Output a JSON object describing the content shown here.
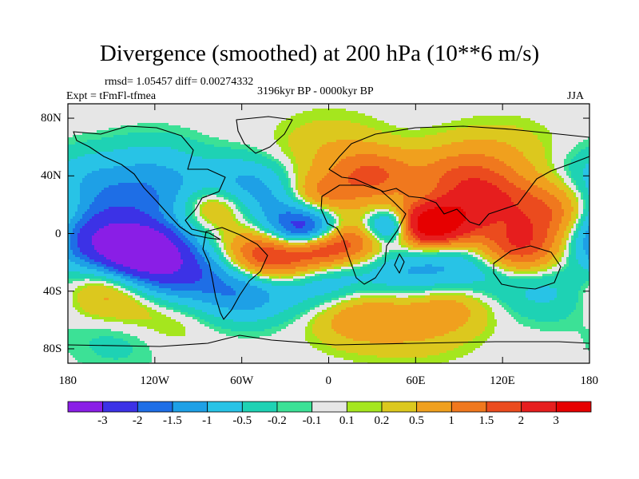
{
  "chart_data": {
    "type": "heatmap",
    "title": "Divergence (smoothed) at 200 hPa (10**6 m/s)",
    "stats_line": "rmsd= 1.05457 diff= 0.00274332",
    "experiment_label": "Expt = tFmFl-tfmea",
    "period_label": "3196kyr BP - 0000kyr BP",
    "season_label": "JJA",
    "x_axis": {
      "range": [
        -180,
        180
      ],
      "ticks": [
        -180,
        -120,
        -60,
        0,
        60,
        120,
        180
      ],
      "tick_labels": [
        "180",
        "120W",
        "60W",
        "0",
        "60E",
        "120E",
        "180"
      ]
    },
    "y_axis": {
      "range": [
        -90,
        90
      ],
      "ticks": [
        80,
        40,
        0,
        -40,
        -80
      ],
      "tick_labels": [
        "80N",
        "40N",
        "0",
        "40S",
        "80S"
      ]
    },
    "colorbar": {
      "levels": [
        "-3",
        "-2",
        "-1.5",
        "-1",
        "-0.5",
        "-0.2",
        "-0.1",
        "0.1",
        "0.2",
        "0.5",
        "1",
        "1.5",
        "2",
        "3"
      ],
      "colors": [
        "#8a1ee6",
        "#3c32e6",
        "#1e6ee6",
        "#1ea0e6",
        "#28c3e6",
        "#1ed2b4",
        "#3ce196",
        "#e6e6e6",
        "#a5e61e",
        "#dcc81e",
        "#f0a01e",
        "#f0781e",
        "#eb4b1e",
        "#e61e1e",
        "#e60000"
      ]
    },
    "anomalies": [
      {
        "lon": -130,
        "lat": -10,
        "value": -3.5,
        "spread": 7
      },
      {
        "lon": -160,
        "lat": -5,
        "value": -2.2,
        "spread": 9
      },
      {
        "lon": -110,
        "lat": -25,
        "value": -2.5,
        "spread": 9
      },
      {
        "lon": -15,
        "lat": 0,
        "value": -3.5,
        "spread": 7
      },
      {
        "lon": -40,
        "lat": -15,
        "value": 2.5,
        "spread": 8
      },
      {
        "lon": -10,
        "lat": -10,
        "value": 2.0,
        "spread": 6
      },
      {
        "lon": 10,
        "lat": -5,
        "value": 2.0,
        "spread": 7
      },
      {
        "lon": 45,
        "lat": 5,
        "value": -2.5,
        "spread": 5
      },
      {
        "lon": 65,
        "lat": 5,
        "value": 3.5,
        "spread": 6
      },
      {
        "lon": 85,
        "lat": 10,
        "value": 2.0,
        "spread": 7
      },
      {
        "lon": 130,
        "lat": -10,
        "value": 2.0,
        "spread": 8
      },
      {
        "lon": 150,
        "lat": 15,
        "value": 1.5,
        "spread": 9
      },
      {
        "lon": 110,
        "lat": 25,
        "value": 1.2,
        "spread": 8
      },
      {
        "lon": 30,
        "lat": 40,
        "value": 1.5,
        "spread": 8
      },
      {
        "lon": 90,
        "lat": 40,
        "value": 1.2,
        "spread": 9
      },
      {
        "lon": -10,
        "lat": 25,
        "value": 1.5,
        "spread": 7
      },
      {
        "lon": -30,
        "lat": 20,
        "value": -1.2,
        "spread": 8
      },
      {
        "lon": -60,
        "lat": 35,
        "value": -1.0,
        "spread": 8
      },
      {
        "lon": -80,
        "lat": 20,
        "value": 1.2,
        "spread": 7
      },
      {
        "lon": -150,
        "lat": 20,
        "value": -1.0,
        "spread": 10
      },
      {
        "lon": -110,
        "lat": 25,
        "value": -1.0,
        "spread": 10
      },
      {
        "lon": -170,
        "lat": 40,
        "value": -0.6,
        "spread": 9
      },
      {
        "lon": -120,
        "lat": 50,
        "value": -0.5,
        "spread": 9
      },
      {
        "lon": -60,
        "lat": -40,
        "value": -1.5,
        "spread": 9
      },
      {
        "lon": 0,
        "lat": -35,
        "value": -1.0,
        "spread": 9
      },
      {
        "lon": 60,
        "lat": -30,
        "value": -1.2,
        "spread": 9
      },
      {
        "lon": 100,
        "lat": -25,
        "value": -1.0,
        "spread": 9
      },
      {
        "lon": 80,
        "lat": -45,
        "value": 1.0,
        "spread": 9
      },
      {
        "lon": 20,
        "lat": -55,
        "value": 1.0,
        "spread": 9
      },
      {
        "lon": -150,
        "lat": -40,
        "value": 0.8,
        "spread": 9
      },
      {
        "lon": 150,
        "lat": -40,
        "value": -0.6,
        "spread": 9
      },
      {
        "lon": -120,
        "lat": -60,
        "value": 0.5,
        "spread": 10
      },
      {
        "lon": 0,
        "lat": 60,
        "value": 0.4,
        "spread": 10
      },
      {
        "lon": 120,
        "lat": 55,
        "value": 0.4,
        "spread": 10
      },
      {
        "lon": -140,
        "lat": -70,
        "value": -0.5,
        "spread": 10
      },
      {
        "lon": 60,
        "lat": -65,
        "value": 0.4,
        "spread": 10
      }
    ]
  }
}
